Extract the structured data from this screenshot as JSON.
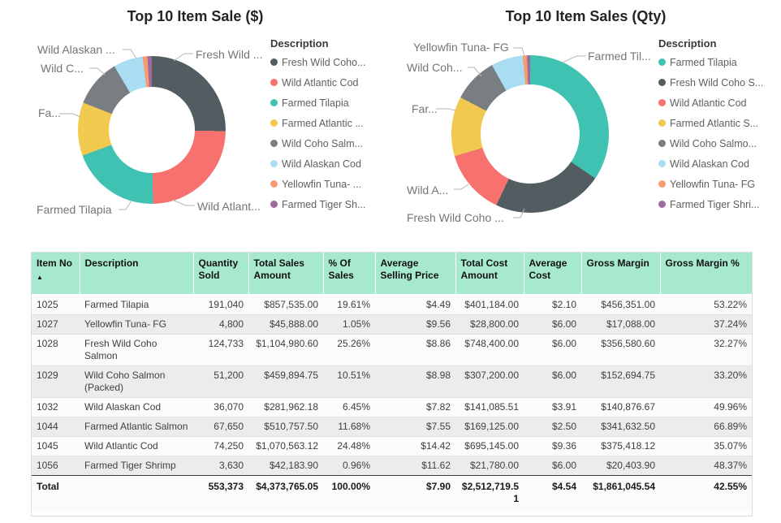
{
  "chart_data": [
    {
      "type": "donut",
      "title": "Top 10 Item Sale ($)",
      "legend_title": "Description",
      "legend_position": "right",
      "categories": [
        "Fresh Wild Coho Salmon",
        "Wild Atlantic Cod",
        "Farmed Tilapia",
        "Farmed Atlantic Salmon",
        "Wild Coho Salmon (Packed)",
        "Wild Alaskan Cod",
        "Yellowfin Tuna- FG",
        "Farmed Tiger Shrimp"
      ],
      "values": [
        1104980.6,
        1070563.12,
        857535.0,
        510757.5,
        459894.75,
        281962.18,
        45888.0,
        42183.9
      ],
      "pct": [
        25.26,
        24.48,
        19.61,
        11.68,
        10.51,
        6.45,
        1.05,
        0.96
      ],
      "colors": [
        "#535D61",
        "#F7716E",
        "#3FC2B1",
        "#F2C94F",
        "#797E82",
        "#A9DDF1",
        "#F99B72",
        "#A06A9D"
      ],
      "legend_labels": [
        "Fresh Wild Coho...",
        "Wild Atlantic Cod",
        "Farmed Tilapia",
        "Farmed Atlantic ...",
        "Wild Coho Salm...",
        "Wild Alaskan Cod",
        "Yellowfin Tuna- ...",
        "Farmed Tiger Sh..."
      ],
      "callout_labels": [
        "Fresh Wild ...",
        "Wild Atlant...",
        "Farmed Tilapia",
        "Fa...",
        "Wild C...",
        "Wild Alaskan ..."
      ]
    },
    {
      "type": "donut",
      "title": "Top 10 Item Sales (Qty)",
      "legend_title": "Description",
      "legend_position": "right",
      "categories": [
        "Farmed Tilapia",
        "Fresh Wild Coho Salmon",
        "Wild Atlantic Cod",
        "Farmed Atlantic Salmon",
        "Wild Coho Salmon (Packed)",
        "Wild Alaskan Cod",
        "Yellowfin Tuna- FG",
        "Farmed Tiger Shrimp"
      ],
      "values": [
        191040,
        124733,
        74250,
        67650,
        51200,
        36070,
        4800,
        3630
      ],
      "pct": [
        34.52,
        22.54,
        13.42,
        12.22,
        9.25,
        6.52,
        0.87,
        0.66
      ],
      "colors": [
        "#3FC2B1",
        "#535D61",
        "#F7716E",
        "#F2C94F",
        "#797E82",
        "#A9DDF1",
        "#F99B72",
        "#A06A9D"
      ],
      "legend_labels": [
        "Farmed Tilapia",
        "Fresh Wild Coho S...",
        "Wild Atlantic Cod",
        "Farmed Atlantic S...",
        "Wild Coho Salmo...",
        "Wild Alaskan Cod",
        "Yellowfin Tuna- FG",
        "Farmed Tiger Shri..."
      ],
      "callout_labels": [
        "Farmed Til...",
        "Fresh Wild Coho ...",
        "Wild A...",
        "Far...",
        "Wild Coh...",
        "Yellowfin Tuna- FG"
      ]
    },
    {
      "type": "table",
      "columns": [
        "Item No",
        "Description",
        "Quantity Sold",
        "Total Sales Amount",
        "% Of Sales",
        "Average Selling Price",
        "Total Cost Amount",
        "Average Cost",
        "Gross Margin",
        "Gross Margin %"
      ],
      "sort": {
        "column": "Item No",
        "direction": "ascending",
        "indicator": "▲"
      },
      "rows": [
        [
          "1025",
          "Farmed Tilapia",
          "191,040",
          "$857,535.00",
          "19.61%",
          "$4.49",
          "$401,184.00",
          "$2.10",
          "$456,351.00",
          "53.22%"
        ],
        [
          "1027",
          "Yellowfin Tuna- FG",
          "4,800",
          "$45,888.00",
          "1.05%",
          "$9.56",
          "$28,800.00",
          "$6.00",
          "$17,088.00",
          "37.24%"
        ],
        [
          "1028",
          "Fresh Wild Coho Salmon",
          "124,733",
          "$1,104,980.60",
          "25.26%",
          "$8.86",
          "$748,400.00",
          "$6.00",
          "$356,580.60",
          "32.27%"
        ],
        [
          "1029",
          "Wild Coho Salmon (Packed)",
          "51,200",
          "$459,894.75",
          "10.51%",
          "$8.98",
          "$307,200.00",
          "$6.00",
          "$152,694.75",
          "33.20%"
        ],
        [
          "1032",
          "Wild Alaskan Cod",
          "36,070",
          "$281,962.18",
          "6.45%",
          "$7.82",
          "$141,085.51",
          "$3.91",
          "$140,876.67",
          "49.96%"
        ],
        [
          "1044",
          "Farmed Atlantic Salmon",
          "67,650",
          "$510,757.50",
          "11.68%",
          "$7.55",
          "$169,125.00",
          "$2.50",
          "$341,632.50",
          "66.89%"
        ],
        [
          "1045",
          "Wild Atlantic Cod",
          "74,250",
          "$1,070,563.12",
          "24.48%",
          "$14.42",
          "$695,145.00",
          "$9.36",
          "$375,418.12",
          "35.07%"
        ],
        [
          "1056",
          "Farmed Tiger Shrimp",
          "3,630",
          "$42,183.90",
          "0.96%",
          "$11.62",
          "$21,780.00",
          "$6.00",
          "$20,403.90",
          "48.37%"
        ]
      ],
      "total_row": [
        "Total",
        "",
        "553,373",
        "$4,373,765.05",
        "100.00%",
        "$7.90",
        "$2,512,719.51",
        "$4.54",
        "$1,861,045.54",
        "42.55%"
      ]
    }
  ]
}
